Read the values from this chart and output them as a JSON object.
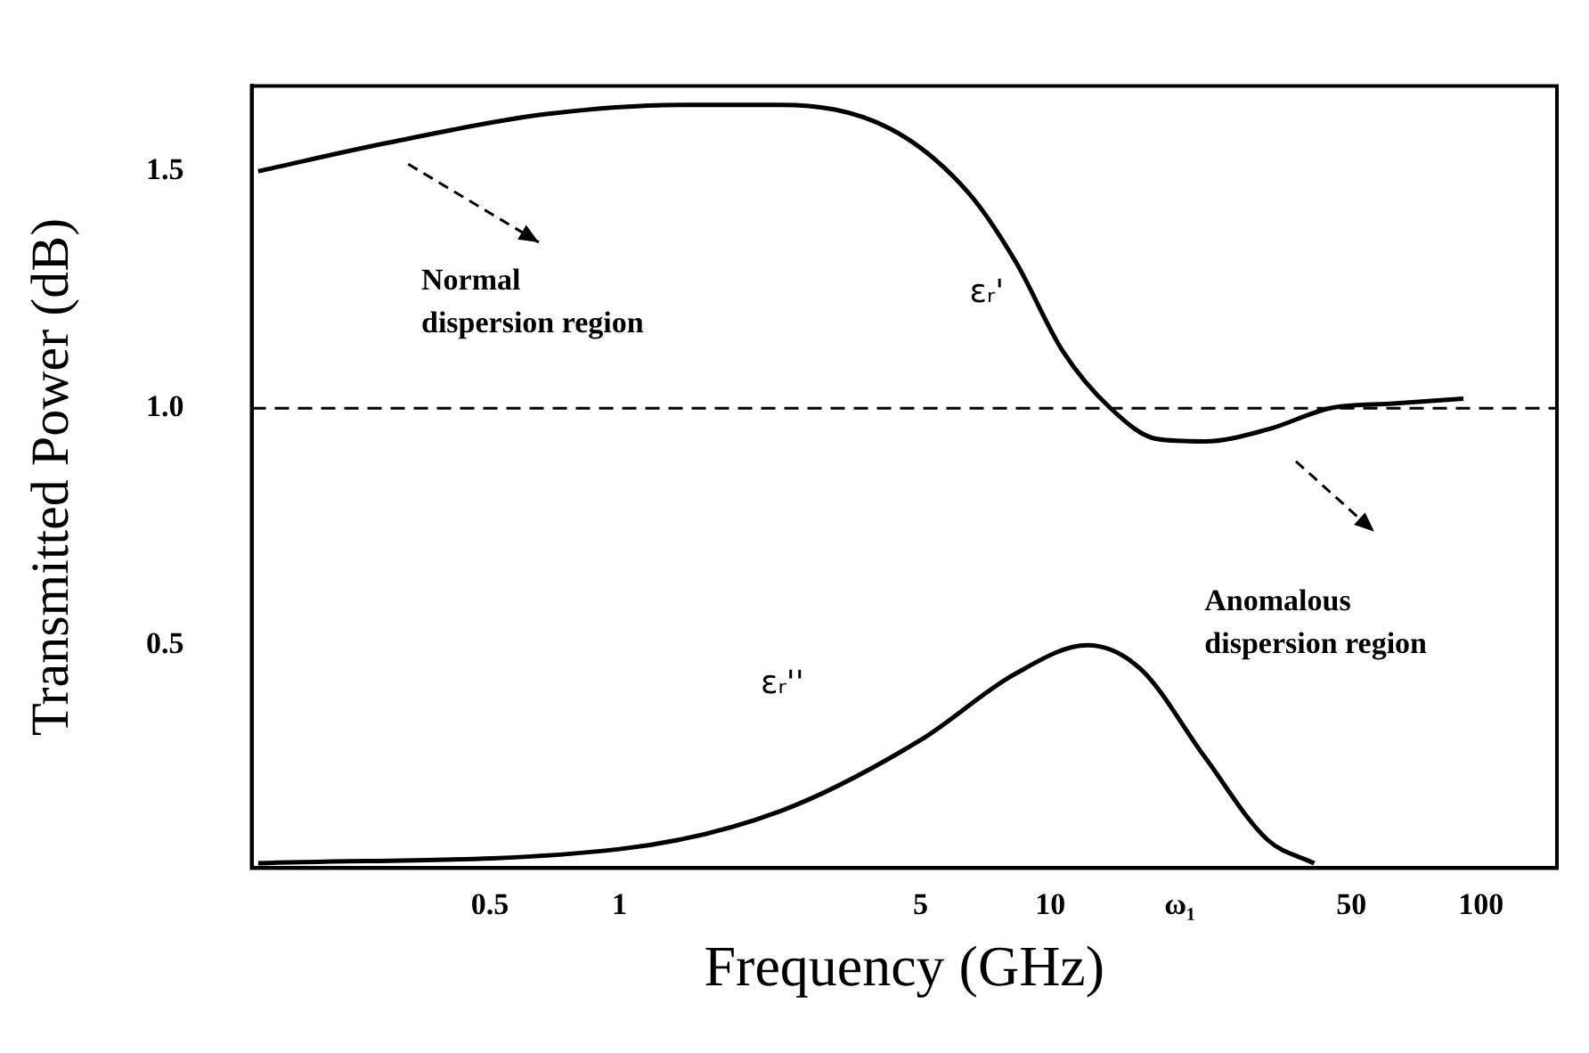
{
  "chart_data": {
    "type": "line",
    "xlabel": "Frequency (GHz)",
    "ylabel": "Transmitted Power (dB)",
    "log": "x",
    "xlim": [
      0.14,
      150
    ],
    "xticks": [
      0.5,
      1,
      5,
      10,
      {
        "value": 20,
        "label": "ω₁"
      },
      50,
      100
    ],
    "ylim": [
      0.03,
      1.68
    ],
    "yticks": [
      0.5,
      {
        "value": 1,
        "label": "1.0"
      },
      1.5
    ],
    "grid": false,
    "legend": false,
    "marker": "none",
    "line_style": "solid",
    "series": [
      {
        "name": "εᵣ'",
        "color": "#000000",
        "x": [
          0.145,
          0.29,
          0.67,
          1.42,
          2.36,
          4.24,
          6.45,
          8.3,
          10.7,
          13.8,
          17.7,
          22.8,
          31.9,
          44.6,
          62.5,
          91
        ],
        "values": [
          1.5,
          1.56,
          1.62,
          1.64,
          1.64,
          1.59,
          1.455,
          1.31,
          1.12,
          1.0,
          0.935,
          0.93,
          0.955,
          1.0,
          1.01,
          1.02
        ]
      },
      {
        "name": "εᵣ''",
        "color": "#000000",
        "x": [
          0.145,
          1.0,
          2.36,
          5,
          8.3,
          12.2,
          16.2,
          22.8,
          31.9,
          41
        ],
        "values": [
          0.04,
          0.07,
          0.15,
          0.3,
          0.44,
          0.5,
          0.45,
          0.265,
          0.09,
          0.04
        ]
      }
    ],
    "ref_lines": [
      {
        "axis": "y",
        "value": 1.0,
        "line_style": "dashed",
        "color": "#000000"
      }
    ],
    "annotations": [
      "Normal dispersion region",
      "Anomalous dispersion region"
    ]
  }
}
